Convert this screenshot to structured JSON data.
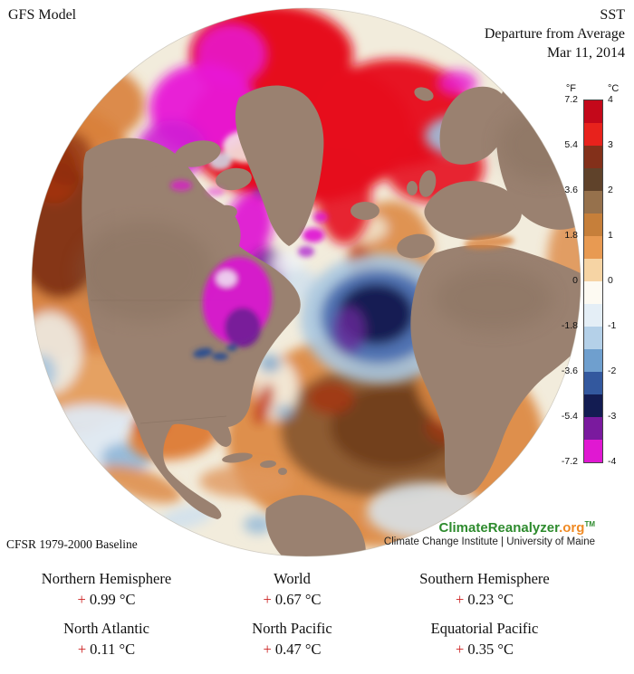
{
  "header": {
    "model": "GFS Model",
    "title": "SST",
    "subtitle": "Departure from Average",
    "date": "Mar 11, 2014"
  },
  "colorbar": {
    "unit_f": "°F",
    "unit_c": "°C",
    "ticks_f": [
      "7.2",
      "5.4",
      "3.6",
      "1.8",
      "0",
      "-1.8",
      "-3.6",
      "-5.4",
      "-7.2"
    ],
    "ticks_c": [
      "4",
      "3",
      "2",
      "1",
      "0",
      "-1",
      "-2",
      "-3",
      "-4"
    ],
    "band_colors_top_to_bottom": [
      "#c4081a",
      "#e8221c",
      "#83301a",
      "#5f422a",
      "#96714c",
      "#c67f3a",
      "#e89a52",
      "#f6d4a4",
      "#fdfaf2",
      "#e4eef6",
      "#b4d0e8",
      "#6f9fce",
      "#33589e",
      "#131c52",
      "#7a1a9e",
      "#e018d2"
    ]
  },
  "map": {
    "land_color": "#9a8170",
    "ocean_neutral_color": "#f2ecdc"
  },
  "footer": {
    "baseline": "CFSR 1979-2000 Baseline",
    "brand_green": "ClimateReanalyzer",
    "brand_org": ".org",
    "brand_tm": "TM",
    "institute": "Climate Change Institute | University of Maine"
  },
  "stats": [
    {
      "label": "Northern Hemisphere",
      "sign": "+",
      "value": "0.99 °C"
    },
    {
      "label": "World",
      "sign": "+",
      "value": "0.67 °C"
    },
    {
      "label": "Southern Hemisphere",
      "sign": "+",
      "value": "0.23 °C"
    },
    {
      "label": "North Atlantic",
      "sign": "+",
      "value": "0.11 °C"
    },
    {
      "label": "North Pacific",
      "sign": "+",
      "value": "0.47 °C"
    },
    {
      "label": "Equatorial Pacific",
      "sign": "+",
      "value": "0.35 °C"
    }
  ],
  "accent": {
    "plus": "#cc2222",
    "brand_green": "#2e8b2e",
    "brand_orange": "#f08a24"
  }
}
